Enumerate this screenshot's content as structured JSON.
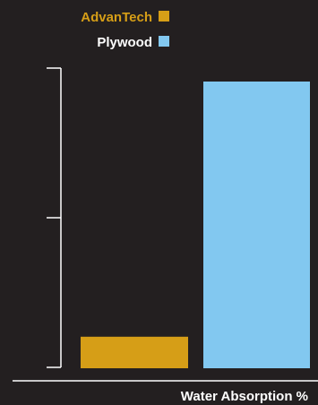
{
  "chart_data": {
    "type": "bar",
    "title": "",
    "xlabel": "Water Absorption %",
    "ylabel": "",
    "ylim": [
      0,
      100
    ],
    "grid": false,
    "legend_placement": "top-right",
    "series": [
      {
        "name": "AdvanTech",
        "value": 11,
        "color": "#d69e17"
      },
      {
        "name": "Plywood",
        "value": 100,
        "color": "#82c8f0"
      }
    ]
  },
  "colors": {
    "background": "#231f20",
    "axis": "#ffffff",
    "baseline": "#ffffff"
  }
}
